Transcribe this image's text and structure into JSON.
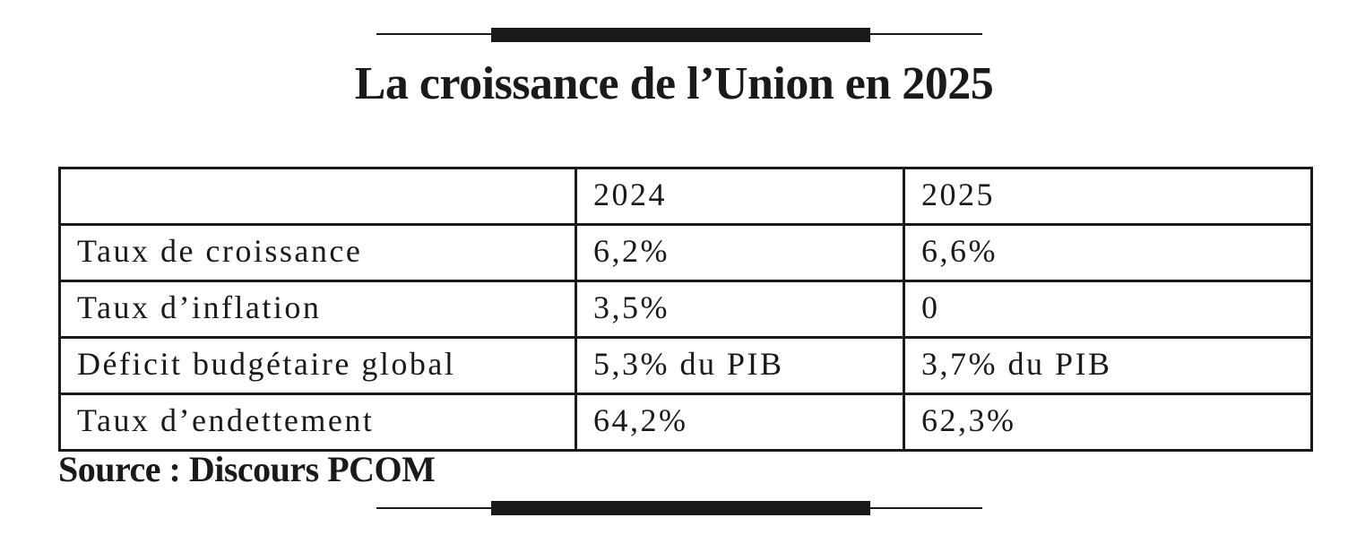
{
  "header": {
    "title": "La croissance de l’Union en 2025"
  },
  "table": {
    "columns": [
      "2024",
      "2025"
    ],
    "rows": [
      [
        "Taux de croissance",
        "6,2%",
        "6,6%"
      ],
      [
        "Taux d’inflation",
        "3,5%",
        "0"
      ],
      [
        "Déficit budgétaire global",
        "5,3% du PIB",
        "3,7% du PIB"
      ],
      [
        "Taux d’endettement",
        "64,2%",
        "62,3%"
      ]
    ]
  },
  "footer": {
    "source": "Source : Discours PCOM"
  }
}
